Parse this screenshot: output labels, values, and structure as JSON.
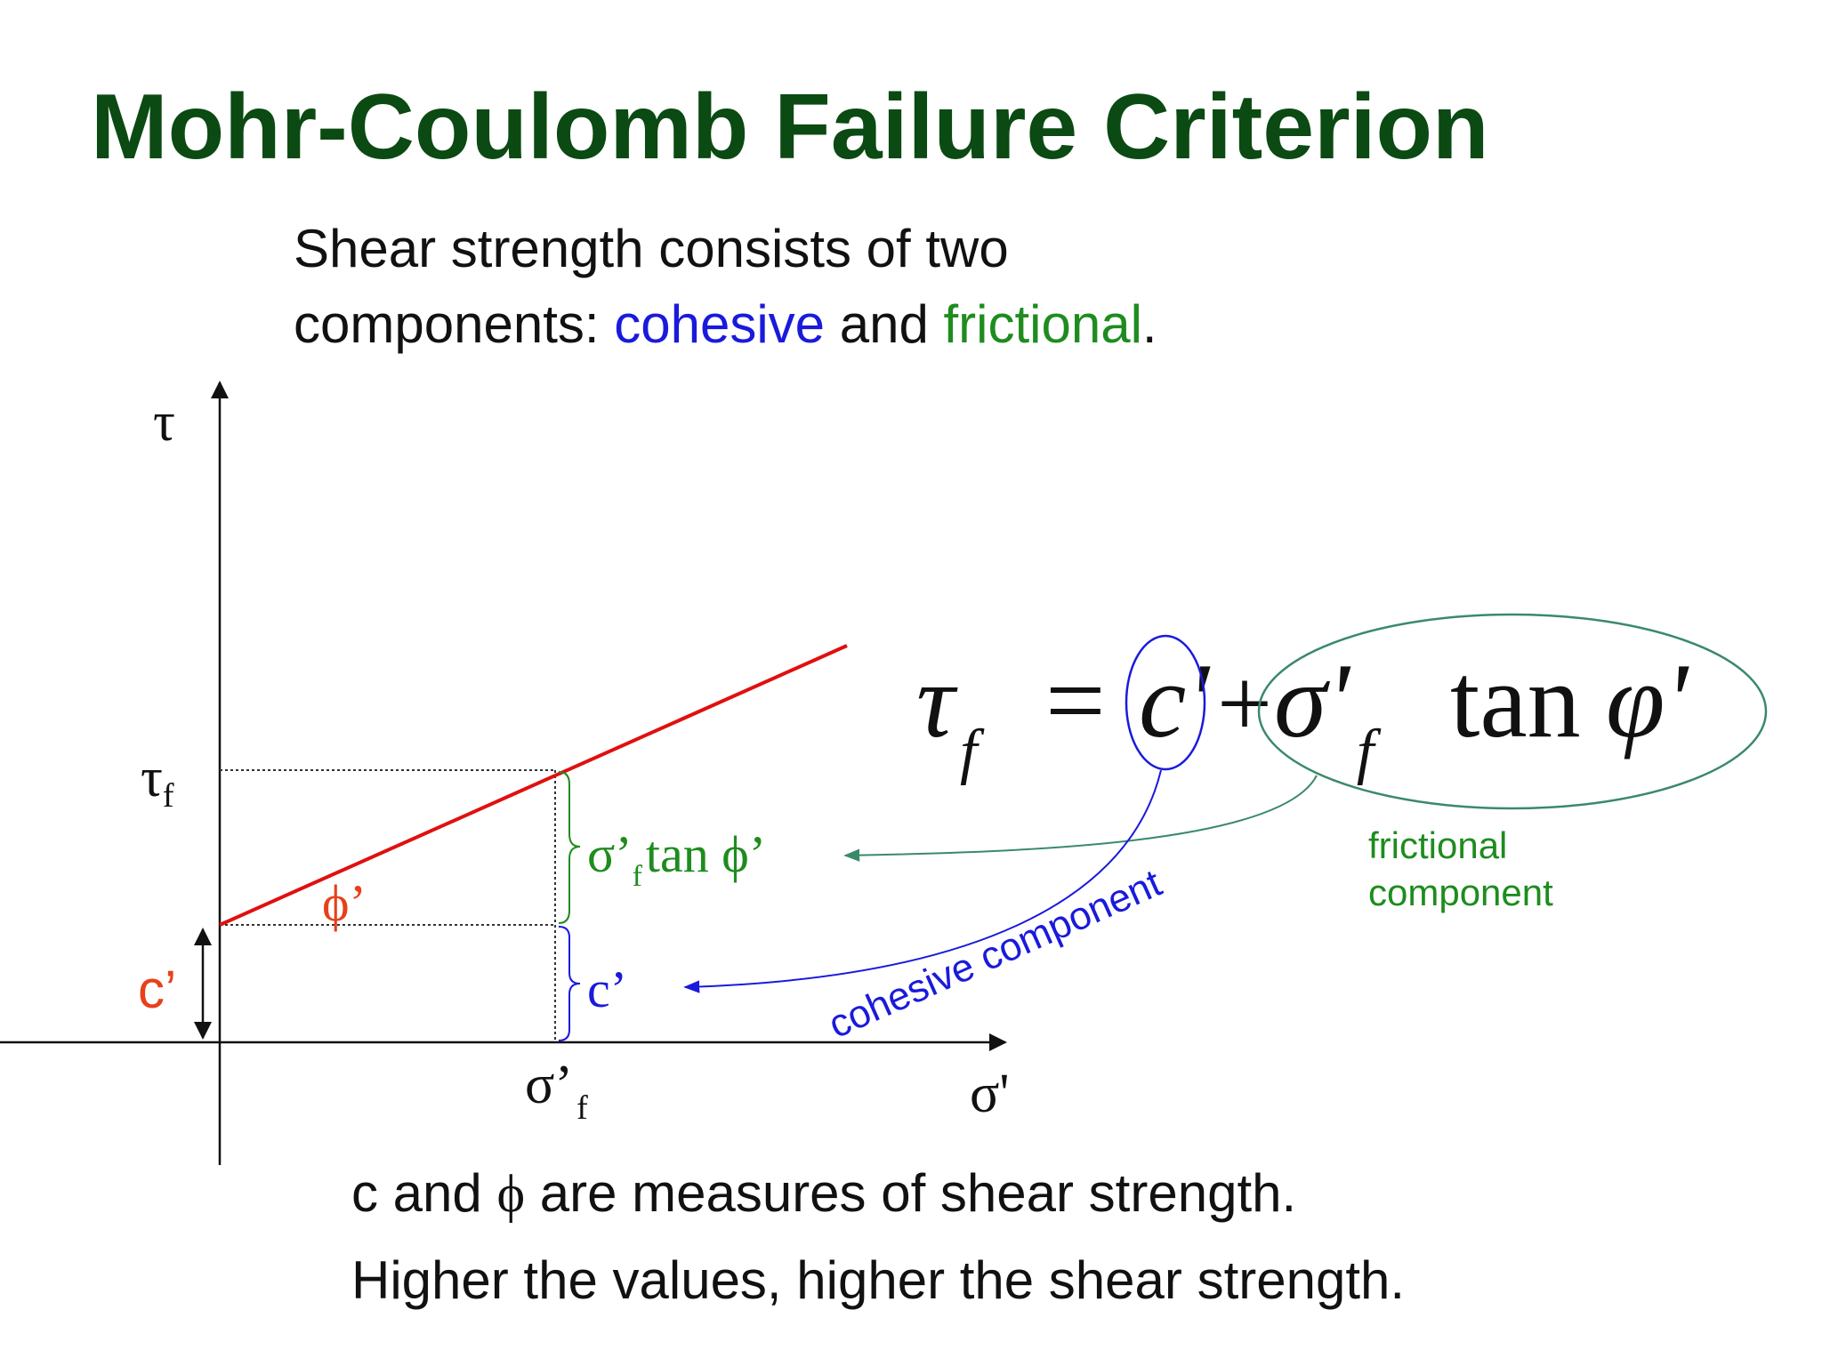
{
  "title": "Mohr-Coulomb Failure Criterion",
  "intro": {
    "line1": "Shear strength consists of two",
    "line2_before": "components: ",
    "cohesive_word": "cohesive",
    "line2_and": " and ",
    "frictional_word": "frictional",
    "line2_end": "."
  },
  "axes": {
    "y_label": "τ",
    "x_label": "σ'",
    "tau_f_main": "τ",
    "tau_f_sub": "f",
    "sigma_f_main": "σ’",
    "sigma_f_sub": "f"
  },
  "diagram_labels": {
    "phi": "ϕ’",
    "c_left": "c’",
    "friction_term_main": "σ’",
    "friction_term_sub": "f",
    "friction_term_tail": "tan ϕ’",
    "cohesion_term": "c’"
  },
  "equation": {
    "lhs": "τ",
    "lhs_sub": "f",
    "equals": "=",
    "c": "c'",
    "plus": "+",
    "sigma": "σ'",
    "sigma_sub": "f",
    "tan": "tan",
    "phi": "φ'"
  },
  "annotations": {
    "frictional_line1": "frictional",
    "frictional_line2": "component",
    "cohesive": "cohesive component"
  },
  "conclusion": {
    "line1_a": "c and ",
    "line1_phi": "ϕ",
    "line1_b": " are measures of shear strength.",
    "line2": "Higher the values, higher the shear strength."
  },
  "colors": {
    "title": "#0b4a12",
    "cohesive": "#1a1adc",
    "frictional": "#1e8c1e",
    "envelope": "#e01010",
    "c_label": "#e8401a",
    "annotation_green": "#3a8a6a",
    "text": "#111111"
  }
}
